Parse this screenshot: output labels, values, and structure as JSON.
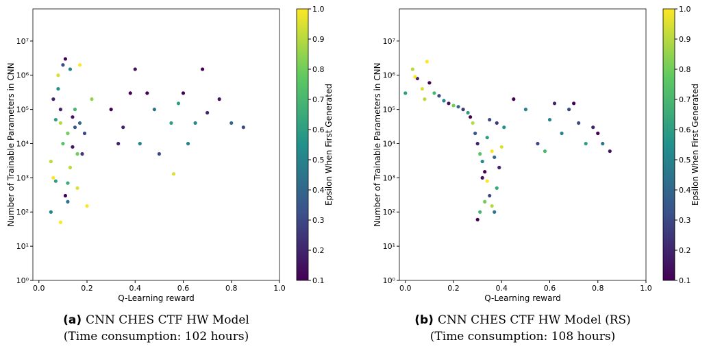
{
  "chart_data": [
    {
      "type": "scatter",
      "caption_label": "(a)",
      "caption": "CNN CHES CTF HW Model",
      "subcaption": "(Time consumption: 102 hours)",
      "xlabel": "Q-Learning reward",
      "ylabel": "Number of Trainable Parameters in CNN",
      "colorbar_label": "Epsilon When First Generated",
      "xlim": [
        -0.025,
        1.0
      ],
      "xticks": [
        {
          "value": 0,
          "label": "0.0"
        },
        0.2,
        0.4,
        0.6,
        0.8,
        {
          "value": 1,
          "label": "1.0"
        }
      ],
      "ylim": [
        1,
        87000000
      ],
      "yscale": "log",
      "yticks": [
        {
          "value": 1,
          "label": "10⁰"
        },
        {
          "value": 10,
          "label": "10¹"
        },
        {
          "value": 100,
          "label": "10²"
        },
        {
          "value": 1000,
          "label": "10³"
        },
        {
          "value": 10000,
          "label": "10⁴"
        },
        {
          "value": 100000,
          "label": "10⁵"
        },
        {
          "value": 1000000,
          "label": "10⁶"
        },
        {
          "value": 10000000,
          "label": "10⁷"
        }
      ],
      "clim": [
        0.1,
        1.0
      ],
      "cticks": [
        0.1,
        0.2,
        0.3,
        0.4,
        0.5,
        0.6,
        0.7,
        0.8,
        0.9,
        {
          "value": 1,
          "label": "1.0"
        }
      ],
      "colormap": [
        "#440154",
        "#3b528b",
        "#21918c",
        "#5ec962",
        "#fde725"
      ],
      "x": [
        0.05,
        0.06,
        0.07,
        0.08,
        0.09,
        0.1,
        0.11,
        0.12,
        0.13,
        0.14,
        0.15,
        0.16,
        0.17,
        0.18,
        0.2,
        0.22,
        0.07,
        0.09,
        0.11,
        0.13,
        0.15,
        0.1,
        0.12,
        0.08,
        0.14,
        0.06,
        0.16,
        0.19,
        0.05,
        0.12,
        0.09,
        0.17,
        0.3,
        0.35,
        0.4,
        0.42,
        0.45,
        0.5,
        0.55,
        0.6,
        0.65,
        0.7,
        0.75,
        0.8,
        0.85,
        0.38,
        0.48,
        0.58,
        0.68,
        0.56,
        0.33,
        0.62
      ],
      "y": [
        3000,
        200000,
        50000,
        1000000,
        50,
        2000000,
        300,
        20000,
        1500000,
        8000,
        100000,
        500,
        40000,
        5000,
        150,
        200000,
        800,
        100000,
        3000000,
        2000,
        30000,
        10000,
        200,
        400000,
        60000,
        1000,
        5000,
        20000,
        100,
        700,
        40000,
        2000000,
        100000,
        30000,
        1500000,
        10000,
        300000,
        5000,
        40000,
        300000,
        40000,
        80000,
        200000,
        40000,
        30000,
        300000,
        100000,
        150000,
        1500000,
        1300,
        10000,
        10000
      ],
      "c": [
        0.9,
        0.2,
        0.6,
        0.95,
        1.0,
        0.3,
        0.1,
        0.8,
        0.5,
        0.15,
        0.7,
        0.95,
        0.4,
        0.25,
        1.0,
        0.85,
        0.6,
        0.2,
        0.1,
        0.9,
        0.35,
        0.75,
        0.45,
        0.55,
        0.15,
        1.0,
        0.8,
        0.3,
        0.5,
        0.65,
        0.9,
        1.0,
        0.1,
        0.2,
        0.15,
        0.5,
        0.1,
        0.3,
        0.6,
        0.1,
        0.5,
        0.2,
        0.15,
        0.4,
        0.3,
        0.1,
        0.45,
        0.6,
        0.1,
        0.95,
        0.2,
        0.5
      ]
    },
    {
      "type": "scatter",
      "caption_label": "(b)",
      "caption": "CNN CHES CTF HW Model (RS)",
      "subcaption": "(Time consumption: 108 hours)",
      "xlabel": "Q-Learning reward",
      "ylabel": "Number of Trainable Parameters in CNN",
      "colorbar_label": "Epsilon When First Generated",
      "xlim": [
        -0.025,
        1.0
      ],
      "xticks": [
        {
          "value": 0,
          "label": "0.0"
        },
        0.2,
        0.4,
        0.6,
        0.8,
        {
          "value": 1,
          "label": "1.0"
        }
      ],
      "ylim": [
        1,
        87000000
      ],
      "yscale": "log",
      "yticks": [
        {
          "value": 1,
          "label": "10⁰"
        },
        {
          "value": 10,
          "label": "10¹"
        },
        {
          "value": 100,
          "label": "10²"
        },
        {
          "value": 1000,
          "label": "10³"
        },
        {
          "value": 10000,
          "label": "10⁴"
        },
        {
          "value": 100000,
          "label": "10⁵"
        },
        {
          "value": 1000000,
          "label": "10⁶"
        },
        {
          "value": 10000000,
          "label": "10⁷"
        }
      ],
      "clim": [
        0.1,
        1.0
      ],
      "cticks": [
        0.1,
        0.2,
        0.3,
        0.4,
        0.5,
        0.6,
        0.7,
        0.8,
        0.9,
        {
          "value": 1,
          "label": "1.0"
        }
      ],
      "colormap": [
        "#440154",
        "#3b528b",
        "#21918c",
        "#5ec962",
        "#fde725"
      ],
      "x": [
        0.0,
        0.03,
        0.05,
        0.07,
        0.09,
        0.1,
        0.12,
        0.14,
        0.16,
        0.18,
        0.2,
        0.22,
        0.24,
        0.26,
        0.27,
        0.28,
        0.29,
        0.3,
        0.31,
        0.32,
        0.33,
        0.34,
        0.35,
        0.36,
        0.37,
        0.38,
        0.39,
        0.4,
        0.41,
        0.3,
        0.33,
        0.35,
        0.37,
        0.32,
        0.34,
        0.36,
        0.38,
        0.31,
        0.45,
        0.5,
        0.55,
        0.58,
        0.62,
        0.65,
        0.7,
        0.72,
        0.75,
        0.78,
        0.8,
        0.82,
        0.85,
        0.6,
        0.68,
        0.04,
        0.08
      ],
      "y": [
        300000,
        1500000,
        800000,
        400000,
        2500000,
        600000,
        300000,
        250000,
        180000,
        150000,
        130000,
        120000,
        100000,
        80000,
        60000,
        40000,
        20000,
        10000,
        5000,
        3000,
        1500,
        800,
        300,
        150,
        100,
        500,
        2000,
        8000,
        30000,
        60,
        200,
        50000,
        4000,
        1000,
        15000,
        6000,
        40000,
        100,
        200000,
        100000,
        10000,
        6000,
        150000,
        20000,
        150000,
        40000,
        10000,
        30000,
        20000,
        10000,
        6000,
        50000,
        100000,
        900000,
        200000
      ],
      "c": [
        0.6,
        0.9,
        0.2,
        0.95,
        1.0,
        0.1,
        0.7,
        0.3,
        0.5,
        0.15,
        0.8,
        0.4,
        0.25,
        0.6,
        0.1,
        0.9,
        0.35,
        0.2,
        0.75,
        0.5,
        0.1,
        1.0,
        0.3,
        0.9,
        0.45,
        0.65,
        0.2,
        0.95,
        0.55,
        0.1,
        0.8,
        0.3,
        0.4,
        0.15,
        0.6,
        1.0,
        0.25,
        0.7,
        0.1,
        0.5,
        0.3,
        0.7,
        0.2,
        0.5,
        0.1,
        0.3,
        0.6,
        0.2,
        0.1,
        0.45,
        0.15,
        0.5,
        0.3,
        1.0,
        0.9
      ]
    }
  ]
}
